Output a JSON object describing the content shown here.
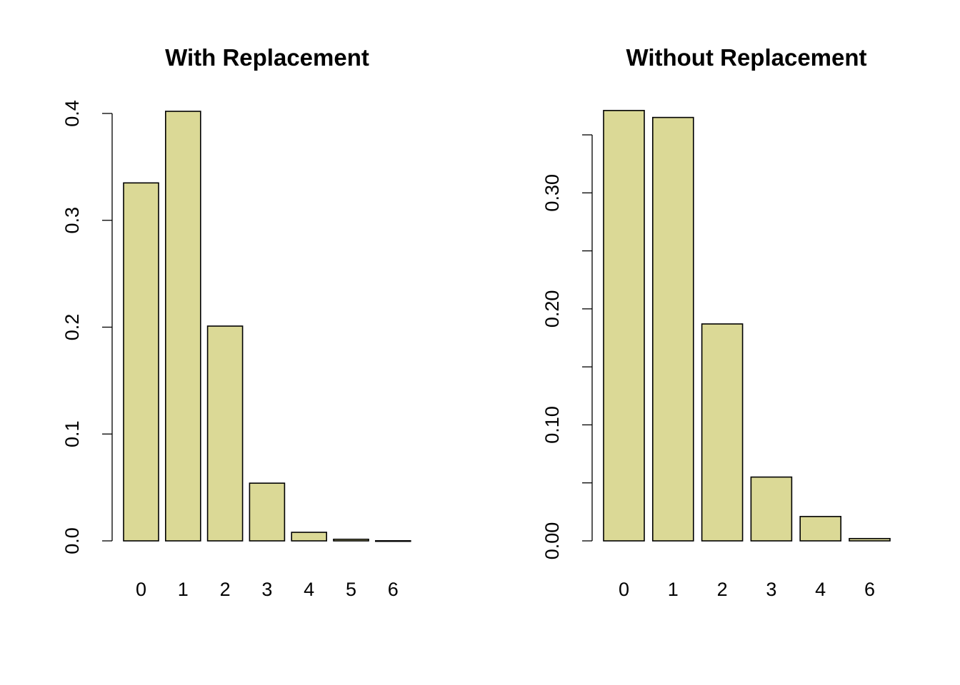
{
  "chart_data": [
    {
      "type": "bar",
      "title": "With Replacement",
      "xlabel": "",
      "ylabel": "",
      "categories": [
        "0",
        "1",
        "2",
        "3",
        "4",
        "5",
        "6"
      ],
      "values": [
        0.335,
        0.402,
        0.201,
        0.054,
        0.008,
        0.0015,
        0.0001
      ],
      "ylim": [
        0,
        0.4
      ],
      "yticks": [
        0.0,
        0.1,
        0.2,
        0.3,
        0.4
      ],
      "ytick_labels": [
        "0.0",
        "0.1",
        "0.2",
        "0.3",
        "0.4"
      ],
      "bar_color": "#dbd996",
      "grid": false
    },
    {
      "type": "bar",
      "title": "Without Replacement",
      "xlabel": "",
      "ylabel": "",
      "categories": [
        "0",
        "1",
        "3",
        "2",
        "4",
        "6"
      ],
      "values": [
        0.371,
        0.365,
        0.187,
        0.055,
        0.021,
        0.002
      ],
      "ylim": [
        0,
        0.35
      ],
      "yticks": [
        0.0,
        0.05,
        0.1,
        0.15,
        0.2,
        0.25,
        0.3,
        0.35
      ],
      "ytick_labels": [
        "0.00",
        "",
        "0.10",
        "",
        "0.20",
        "",
        "0.30",
        ""
      ],
      "bar_color": "#dbd996",
      "grid": false
    }
  ]
}
